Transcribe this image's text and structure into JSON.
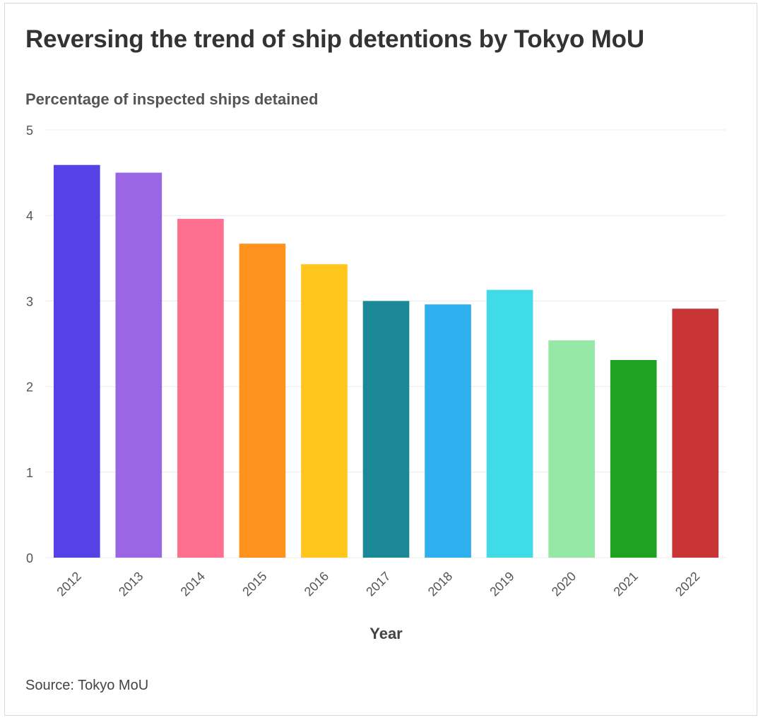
{
  "header": {
    "title": "Reversing the trend of ship detentions by Tokyo MoU",
    "subtitle": "Percentage of inspected ships detained"
  },
  "footer": {
    "source": "Source: Tokyo MoU"
  },
  "chart_data": {
    "type": "bar",
    "title": "Reversing the trend of ship detentions by Tokyo MoU",
    "ylabel": "Percentage of inspected ships detained",
    "xlabel": "Year",
    "categories": [
      "2012",
      "2013",
      "2014",
      "2015",
      "2016",
      "2017",
      "2018",
      "2019",
      "2020",
      "2021",
      "2022"
    ],
    "values": [
      4.59,
      4.5,
      3.96,
      3.67,
      3.43,
      3.0,
      2.96,
      3.13,
      2.54,
      2.31,
      2.91
    ],
    "colors": [
      "#5641e6",
      "#9b66e4",
      "#ff6f8f",
      "#ff931e",
      "#ffc61e",
      "#1a8896",
      "#2fb0ee",
      "#3fdbe6",
      "#96e8a6",
      "#1fa21f",
      "#c93535"
    ],
    "ylim": [
      0,
      5
    ],
    "yticks": [
      "0",
      "1",
      "2",
      "3",
      "4",
      "5"
    ],
    "grid": true,
    "legend": "none"
  }
}
